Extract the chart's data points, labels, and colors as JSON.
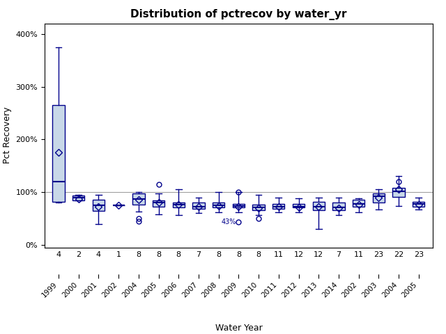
{
  "title": "Distribution of pctrecov by water_yr",
  "xlabel": "Water Year",
  "ylabel": "Pct Recovery",
  "xlabels": [
    "1999",
    "2000",
    "2001",
    "2002",
    "2004",
    "2005",
    "2006",
    "2007",
    "2008",
    "2009",
    "2010",
    "2011",
    "2012",
    "2013",
    "2014",
    "2002",
    "2003",
    "2004",
    "2005"
  ],
  "nobs": [
    4,
    2,
    4,
    1,
    8,
    8,
    8,
    7,
    8,
    8,
    8,
    11,
    12,
    12,
    7,
    11,
    23,
    22,
    23
  ],
  "box_data": {
    "whislo": [
      80,
      84,
      40,
      75,
      63,
      58,
      57,
      60,
      62,
      62,
      57,
      62,
      62,
      30,
      57,
      62,
      67,
      74,
      67
    ],
    "q1": [
      82,
      84,
      65,
      75,
      76,
      73,
      71,
      69,
      71,
      71,
      66,
      69,
      71,
      66,
      66,
      73,
      81,
      91,
      73
    ],
    "med": [
      120,
      90,
      75,
      75,
      87,
      80,
      76,
      73,
      75,
      74,
      71,
      72,
      72,
      72,
      71,
      78,
      92,
      102,
      78
    ],
    "q3": [
      265,
      93,
      85,
      75,
      98,
      84,
      80,
      80,
      80,
      78,
      76,
      78,
      78,
      82,
      80,
      85,
      98,
      108,
      82
    ],
    "whishi": [
      375,
      95,
      95,
      75,
      100,
      98,
      105,
      90,
      100,
      100,
      95,
      90,
      88,
      90,
      90,
      88,
      105,
      130,
      90
    ],
    "mean": [
      175,
      87,
      73,
      75,
      85,
      80,
      76,
      72,
      74,
      72,
      70,
      72,
      71,
      73,
      70,
      77,
      90,
      105,
      77
    ],
    "fliers_hi": [
      null,
      null,
      null,
      null,
      null,
      [
        115
      ],
      null,
      null,
      null,
      [
        100
      ],
      null,
      null,
      null,
      null,
      null,
      null,
      null,
      [
        120
      ],
      null
    ],
    "fliers_lo": [
      null,
      null,
      null,
      null,
      [
        50,
        45
      ],
      null,
      null,
      null,
      null,
      [
        43
      ],
      [
        50
      ],
      null,
      null,
      null,
      null,
      null,
      null,
      null,
      null
    ],
    "flier_labels": [
      null,
      null,
      null,
      null,
      null,
      null,
      null,
      null,
      null,
      [
        "43%"
      ],
      null,
      null,
      null,
      null,
      null,
      null,
      null,
      null,
      null
    ]
  },
  "ref_line": 100,
  "ylim": [
    -5,
    420
  ],
  "yticks": [
    0,
    100,
    200,
    300,
    400
  ],
  "ytick_labels": [
    "0%",
    "100%",
    "200%",
    "300%",
    "400%"
  ],
  "box_color": "#c8d8e8",
  "box_edge_color": "#00008b",
  "whisker_color": "#00008b",
  "mean_marker_color": "#00008b",
  "median_line_color": "#00008b",
  "flier_color": "#00008b",
  "ref_line_color": "#a0a0a0",
  "bg_color": "#ffffff"
}
